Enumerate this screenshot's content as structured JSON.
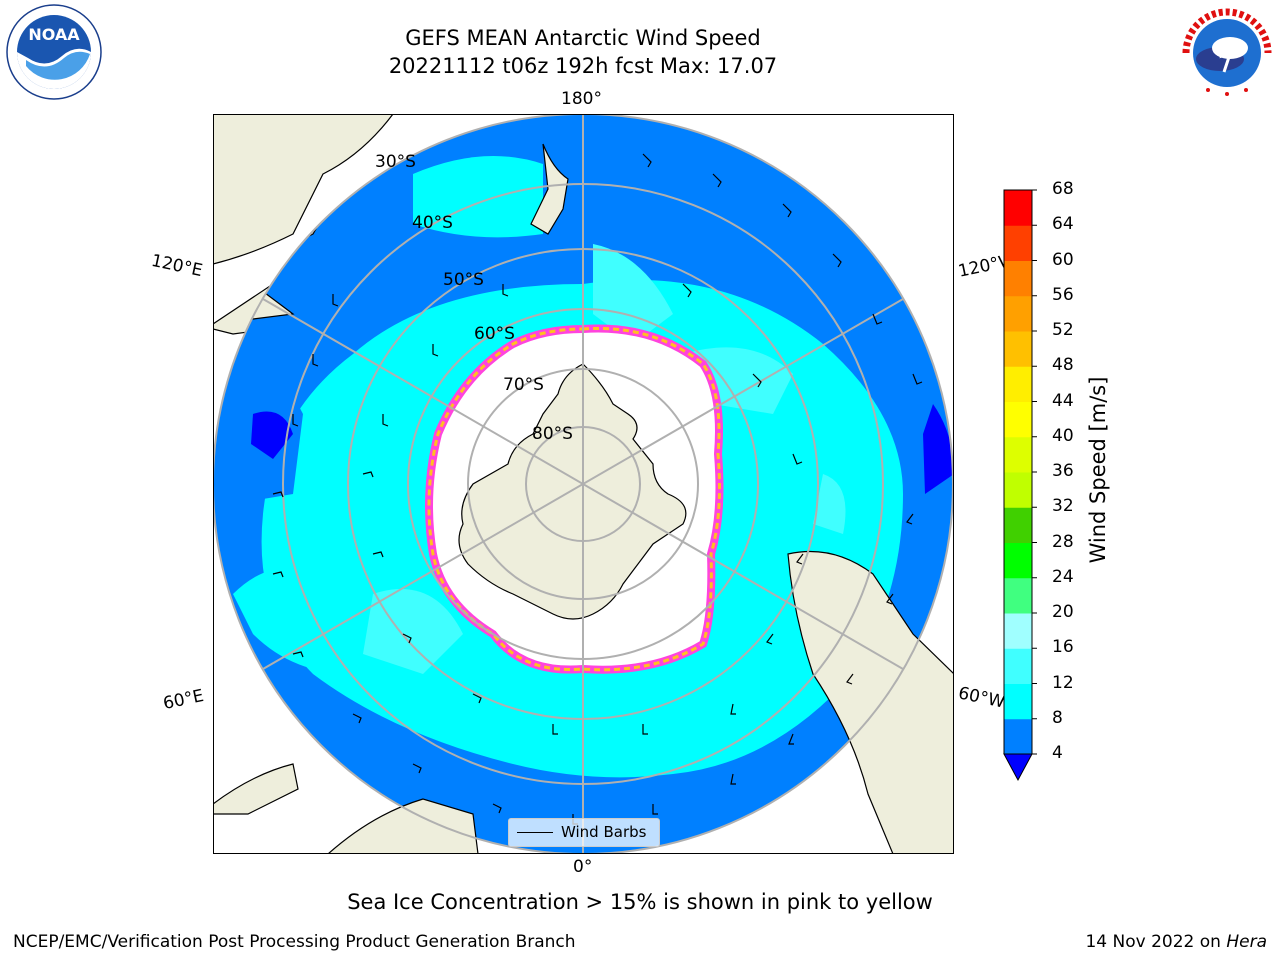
{
  "title": {
    "line1": "GEFS MEAN Antarctic Wind Speed",
    "line2": "20221112 t06z 192h fcst   Max: 17.07"
  },
  "logos": {
    "noaa": {
      "text": "NOAA",
      "ring_text": "NATIONAL OCEANIC AND ATMOSPHERIC ADMINISTRATION · U.S. DEPARTMENT OF COMMERCE"
    },
    "nws": {
      "ring_text": "NATIONAL WEATHER SERVICE"
    }
  },
  "map": {
    "longitude_labels": {
      "top": "180°",
      "bottom": "0°",
      "upper_left": "120°E",
      "upper_right": "120°W",
      "lower_left": "60°E",
      "lower_right": "60°W"
    },
    "latitude_labels": [
      "30°S",
      "40°S",
      "50°S",
      "60°S",
      "70°S",
      "80°S"
    ],
    "legend": {
      "label": "Wind Barbs"
    },
    "colors": {
      "land": "#eeeedc",
      "ice": "#ffffff",
      "grid": "#b0b0b0"
    }
  },
  "colorbar": {
    "label": "Wind Speed [m/s]",
    "ticks": [
      "4",
      "8",
      "12",
      "16",
      "20",
      "24",
      "28",
      "32",
      "36",
      "40",
      "44",
      "48",
      "52",
      "56",
      "60",
      "64",
      "68"
    ],
    "colors": [
      "#0080ff",
      "#00ffff",
      "#40ffff",
      "#a0ffff",
      "#40ff80",
      "#00ff00",
      "#40d000",
      "#c0ff00",
      "#ddff00",
      "#ffff00",
      "#ffee00",
      "#ffc000",
      "#ffa000",
      "#ff8000",
      "#ff4000",
      "#ff0000"
    ],
    "extend_color": "#0000ff"
  },
  "caption": "Sea Ice Concentration > 15% is shown in pink to yellow",
  "footer": {
    "left": "NCEP/EMC/Verification Post Processing Product Generation Branch",
    "right_date": "14 Nov 2022 on",
    "right_host": "Hera"
  }
}
